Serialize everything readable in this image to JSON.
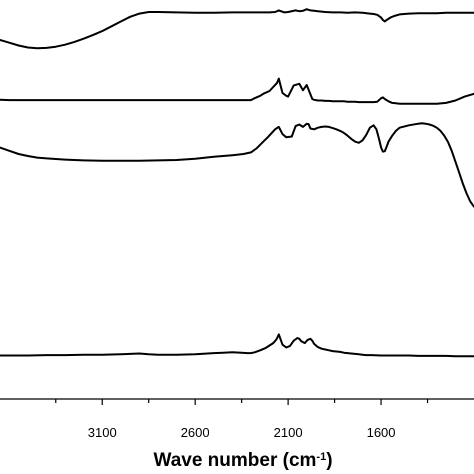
{
  "chart_data": {
    "type": "line",
    "xlabel": "Wave number (cm",
    "xlabel_superscript": "-1",
    "xlabel_suffix": ")",
    "xlim": [
      3650,
      1100
    ],
    "x_reversed": true,
    "y_visible": false,
    "ylim": [
      0,
      100
    ],
    "x_ticks": [
      3100,
      2600,
      2100,
      1600
    ],
    "x_tick_labels": [
      "3100",
      "2600",
      "2100",
      "1600"
    ],
    "x_minor_ticks": [
      3350,
      2850,
      2350,
      1850,
      1350
    ],
    "grid": false,
    "line_color": "#000000",
    "series": [
      {
        "x": [
          3650,
          3600,
          3550,
          3500,
          3450,
          3400,
          3350,
          3300,
          3250,
          3200,
          3150,
          3100,
          3050,
          3000,
          2950,
          2900,
          2850,
          2800,
          2700,
          2600,
          2500,
          2400,
          2300,
          2250,
          2200,
          2170,
          2150,
          2120,
          2100,
          2060,
          2040,
          2020,
          2000,
          1980,
          1960,
          1940,
          1900,
          1860,
          1820,
          1780,
          1740,
          1700,
          1660,
          1640,
          1620,
          1600,
          1590,
          1580,
          1570,
          1550,
          1530,
          1500,
          1450,
          1400,
          1350,
          1300,
          1250,
          1200,
          1150,
          1100
        ],
        "y": [
          90.0,
          89.3,
          88.6,
          88.1,
          87.9,
          88.0,
          88.3,
          88.8,
          89.5,
          90.3,
          91.2,
          92.2,
          93.4,
          94.6,
          95.8,
          96.6,
          97.0,
          97.0,
          96.9,
          96.8,
          96.8,
          96.9,
          96.9,
          96.9,
          96.9,
          97.0,
          97.4,
          96.9,
          97.0,
          97.4,
          97.2,
          97.3,
          97.7,
          97.4,
          97.3,
          97.2,
          97.0,
          96.9,
          96.9,
          96.8,
          96.9,
          96.8,
          96.6,
          96.5,
          96.3,
          95.6,
          95.0,
          94.6,
          95.0,
          95.6,
          96.0,
          96.4,
          96.6,
          96.7,
          96.7,
          96.7,
          96.8,
          96.8,
          96.8,
          96.8
        ]
      },
      {
        "x": [
          3650,
          3600,
          3500,
          3400,
          3300,
          3200,
          3100,
          3000,
          2900,
          2800,
          2700,
          2600,
          2500,
          2400,
          2350,
          2300,
          2280,
          2250,
          2230,
          2200,
          2180,
          2160,
          2150,
          2130,
          2110,
          2100,
          2070,
          2040,
          2020,
          2000,
          1980,
          1970,
          1960,
          1940,
          1920,
          1900,
          1880,
          1860,
          1840,
          1820,
          1800,
          1780,
          1760,
          1740,
          1720,
          1700,
          1680,
          1660,
          1640,
          1620,
          1600,
          1590,
          1580,
          1560,
          1540,
          1520,
          1500,
          1450,
          1400,
          1350,
          1300,
          1250,
          1200,
          1150,
          1100
        ],
        "y": [
          75.0,
          74.9,
          74.9,
          74.9,
          74.9,
          74.9,
          74.9,
          74.9,
          74.9,
          74.9,
          74.9,
          74.9,
          74.9,
          74.9,
          74.9,
          74.9,
          75.4,
          76.0,
          76.6,
          77.2,
          78.2,
          79.2,
          80.3,
          76.7,
          76.0,
          75.8,
          78.6,
          79.0,
          77.4,
          78.7,
          76.4,
          75.2,
          75.0,
          74.8,
          74.8,
          74.7,
          74.7,
          74.6,
          74.6,
          74.6,
          74.6,
          74.5,
          74.5,
          74.5,
          74.4,
          74.4,
          74.4,
          74.4,
          74.4,
          74.5,
          75.4,
          75.6,
          75.2,
          74.6,
          74.2,
          74.1,
          74.0,
          74.0,
          74.0,
          74.0,
          74.0,
          74.2,
          74.8,
          75.8,
          76.5
        ]
      },
      {
        "x": [
          3650,
          3600,
          3550,
          3500,
          3450,
          3400,
          3300,
          3200,
          3100,
          3000,
          2900,
          2800,
          2700,
          2600,
          2500,
          2400,
          2340,
          2300,
          2270,
          2240,
          2210,
          2190,
          2170,
          2150,
          2130,
          2110,
          2080,
          2060,
          2040,
          2020,
          2000,
          1990,
          1980,
          1960,
          1940,
          1920,
          1900,
          1880,
          1860,
          1840,
          1820,
          1800,
          1780,
          1760,
          1740,
          1720,
          1700,
          1680,
          1660,
          1640,
          1625,
          1610,
          1600,
          1590,
          1580,
          1570,
          1560,
          1540,
          1520,
          1500,
          1450,
          1400,
          1380,
          1360,
          1340,
          1320,
          1300,
          1280,
          1260,
          1240,
          1220,
          1200,
          1180,
          1160,
          1140,
          1120,
          1100
        ],
        "y": [
          63.0,
          62.2,
          61.4,
          60.9,
          60.5,
          60.3,
          60.0,
          59.8,
          59.7,
          59.7,
          59.7,
          59.8,
          59.9,
          60.2,
          60.7,
          61.1,
          61.4,
          61.8,
          62.8,
          64.2,
          65.6,
          66.6,
          67.6,
          68.2,
          66.4,
          65.6,
          65.8,
          68.4,
          68.8,
          68.2,
          69.0,
          68.9,
          67.8,
          67.6,
          68.0,
          68.2,
          68.3,
          68.2,
          67.9,
          67.6,
          67.2,
          66.7,
          66.0,
          65.2,
          64.5,
          64.2,
          64.8,
          66.2,
          68.0,
          68.6,
          67.6,
          65.0,
          63.0,
          62.0,
          62.1,
          63.2,
          64.5,
          66.0,
          67.2,
          68.0,
          68.6,
          69.0,
          69.1,
          69.0,
          68.8,
          68.5,
          68.0,
          67.2,
          66.0,
          64.4,
          62.2,
          59.5,
          56.8,
          54.0,
          51.5,
          49.5,
          48.2
        ]
      },
      {
        "x": [
          3650,
          3600,
          3500,
          3400,
          3300,
          3200,
          3100,
          3000,
          2950,
          2900,
          2850,
          2800,
          2700,
          2600,
          2500,
          2450,
          2400,
          2350,
          2320,
          2300,
          2280,
          2250,
          2220,
          2200,
          2180,
          2170,
          2160,
          2150,
          2130,
          2110,
          2090,
          2070,
          2050,
          2040,
          2030,
          2010,
          1995,
          1980,
          1970,
          1960,
          1940,
          1920,
          1900,
          1880,
          1860,
          1840,
          1820,
          1800,
          1780,
          1760,
          1740,
          1720,
          1700,
          1680,
          1650,
          1600,
          1550,
          1500,
          1450,
          1400,
          1350,
          1300,
          1250,
          1200,
          1150,
          1100
        ],
        "y": [
          10.9,
          10.9,
          10.9,
          11.0,
          11.0,
          11.1,
          11.1,
          11.2,
          11.3,
          11.4,
          11.2,
          11.1,
          11.1,
          11.2,
          11.5,
          11.6,
          11.7,
          11.6,
          11.5,
          11.5,
          11.7,
          12.2,
          12.8,
          13.4,
          14.0,
          14.5,
          15.2,
          16.2,
          13.6,
          12.9,
          13.3,
          14.6,
          15.3,
          15.1,
          14.5,
          14.0,
          14.8,
          15.1,
          14.6,
          13.8,
          13.0,
          12.6,
          12.4,
          12.2,
          12.0,
          11.9,
          11.8,
          11.6,
          11.5,
          11.4,
          11.3,
          11.2,
          11.1,
          11.0,
          11.0,
          10.9,
          10.9,
          10.9,
          10.9,
          10.8,
          10.8,
          10.8,
          10.8,
          10.7,
          10.7,
          10.7
        ]
      }
    ]
  }
}
